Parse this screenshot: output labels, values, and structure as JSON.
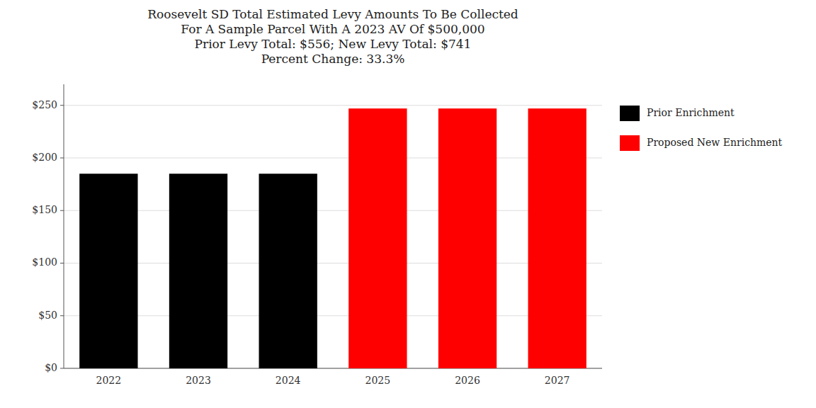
{
  "chart_data": {
    "type": "bar",
    "title": "Roosevelt SD Total Estimated Levy Amounts To Be Collected\nFor A Sample Parcel With A 2023 AV Of $500,000\nPrior Levy Total:  $556; New Levy Total: $741\nPercent Change: 33.3%",
    "categories": [
      "2022",
      "2023",
      "2024",
      "2025",
      "2026",
      "2027"
    ],
    "series": [
      {
        "name": "Prior Enrichment",
        "color": "#000000",
        "values": [
          185,
          185,
          185,
          null,
          null,
          null
        ]
      },
      {
        "name": "Proposed New Enrichment",
        "color": "#ff0000",
        "values": [
          null,
          null,
          null,
          247,
          247,
          247
        ]
      }
    ],
    "stacked": true,
    "ylim": [
      0,
      270
    ],
    "yticks": [
      {
        "value": 0,
        "label": "$0"
      },
      {
        "value": 50,
        "label": "$50"
      },
      {
        "value": 100,
        "label": "$100"
      },
      {
        "value": 150,
        "label": "$150"
      },
      {
        "value": 200,
        "label": "$200"
      },
      {
        "value": 250,
        "label": "$250"
      }
    ],
    "grid": true,
    "legend": "right"
  }
}
